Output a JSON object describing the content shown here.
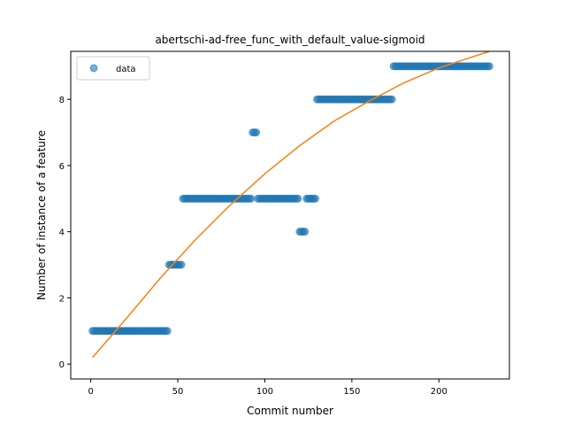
{
  "chart_data": {
    "type": "scatter",
    "title": "abertschi-ad-free_func_with_default_value-sigmoid",
    "xlabel": "Commit number",
    "ylabel": "Number of instance of a feature",
    "xlim": [
      -11.5,
      240.5
    ],
    "ylim": [
      -0.45,
      9.45
    ],
    "xticks": [
      0,
      50,
      100,
      150,
      200
    ],
    "yticks": [
      0,
      2,
      4,
      6,
      8
    ],
    "grid": false,
    "legend": {
      "placement": "upper-left",
      "entries": [
        "data"
      ]
    },
    "colors": {
      "data": "#1f77b4",
      "fit": "#ff7f0e"
    },
    "series": [
      {
        "name": "data",
        "kind": "scatter",
        "segments": [
          {
            "x_start": 1,
            "x_end": 44,
            "y": 1
          },
          {
            "x_start": 45,
            "x_end": 52,
            "y": 3
          },
          {
            "x_start": 53,
            "x_end": 92,
            "y": 5
          },
          {
            "x_start": 93,
            "x_end": 95,
            "y": 7
          },
          {
            "x_start": 96,
            "x_end": 119,
            "y": 5
          },
          {
            "x_start": 120,
            "x_end": 123,
            "y": 4
          },
          {
            "x_start": 124,
            "x_end": 129,
            "y": 5
          },
          {
            "x_start": 130,
            "x_end": 173,
            "y": 8
          },
          {
            "x_start": 174,
            "x_end": 229,
            "y": 9
          }
        ]
      },
      {
        "kind": "line",
        "x": [
          1,
          20,
          40,
          60,
          80,
          100,
          120,
          140,
          160,
          180,
          200,
          229
        ],
        "y": [
          0.2,
          1.35,
          2.6,
          3.75,
          4.8,
          5.75,
          6.6,
          7.35,
          7.95,
          8.5,
          8.95,
          9.45
        ]
      }
    ]
  }
}
